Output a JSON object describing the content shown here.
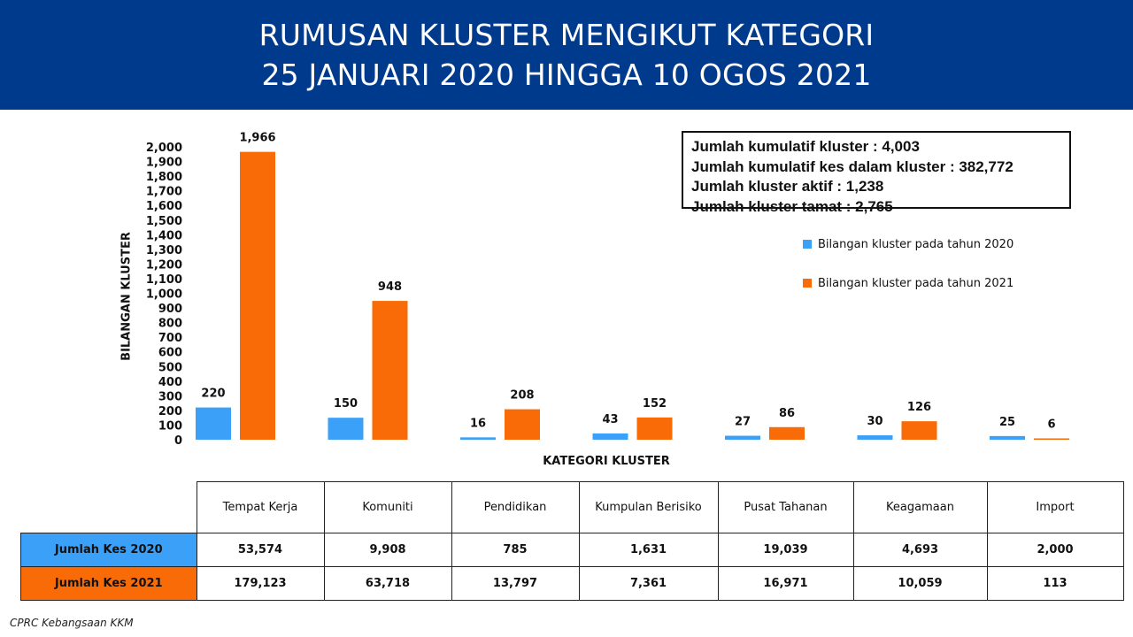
{
  "header": {
    "title_line1": "RUMUSAN KLUSTER MENGIKUT KATEGORI",
    "title_line2": "25 JANUARI 2020 HINGGA 10 OGOS 2021",
    "bg_color": "#003a8c"
  },
  "summary": {
    "line1": "Jumlah kumulatif kluster : 4,003",
    "line2": "Jumlah kumulatif kes dalam kluster : 382,772",
    "line3": "Jumlah kluster aktif : 1,238",
    "line4": "Jumlah kluster tamat : 2,765"
  },
  "chart_data": {
    "type": "bar",
    "ylabel": "BILANGAN KLUSTER",
    "xlabel": "KATEGORI KLUSTER",
    "ylim": [
      0,
      2000
    ],
    "ytick_step": 100,
    "yticks": [
      "0",
      "100",
      "200",
      "300",
      "400",
      "500",
      "600",
      "700",
      "800",
      "900",
      "1,000",
      "1,100",
      "1,200",
      "1,300",
      "1,400",
      "1,500",
      "1,600",
      "1,700",
      "1,800",
      "1,900",
      "2,000"
    ],
    "categories": [
      "Tempat Kerja",
      "Komuniti",
      "Pendidikan",
      "Kumpulan Berisiko",
      "Pusat Tahanan",
      "Keagamaan",
      "Import"
    ],
    "series": [
      {
        "name": "Bilangan kluster pada tahun 2020",
        "color": "#3ba0f7",
        "values": [
          220,
          150,
          16,
          43,
          27,
          30,
          25
        ]
      },
      {
        "name": "Bilangan kluster pada tahun 2021",
        "color": "#f96b06",
        "values": [
          1966,
          948,
          208,
          152,
          86,
          126,
          6
        ]
      }
    ],
    "legend_position": "right",
    "grid": false
  },
  "table": {
    "columns": [
      "Tempat Kerja",
      "Komuniti",
      "Pendidikan",
      "Kumpulan Berisiko",
      "Pusat Tahanan",
      "Keagamaan",
      "Import"
    ],
    "rows": [
      {
        "label": "Jumlah Kes 2020",
        "values": [
          "53,574",
          "9,908",
          "785",
          "1,631",
          "19,039",
          "4,693",
          "2,000"
        ]
      },
      {
        "label": "Jumlah Kes 2021",
        "values": [
          "179,123",
          "63,718",
          "13,797",
          "7,361",
          "16,971",
          "10,059",
          "113"
        ]
      }
    ]
  },
  "footer": {
    "source": "CPRC Kebangsaan KKM"
  }
}
